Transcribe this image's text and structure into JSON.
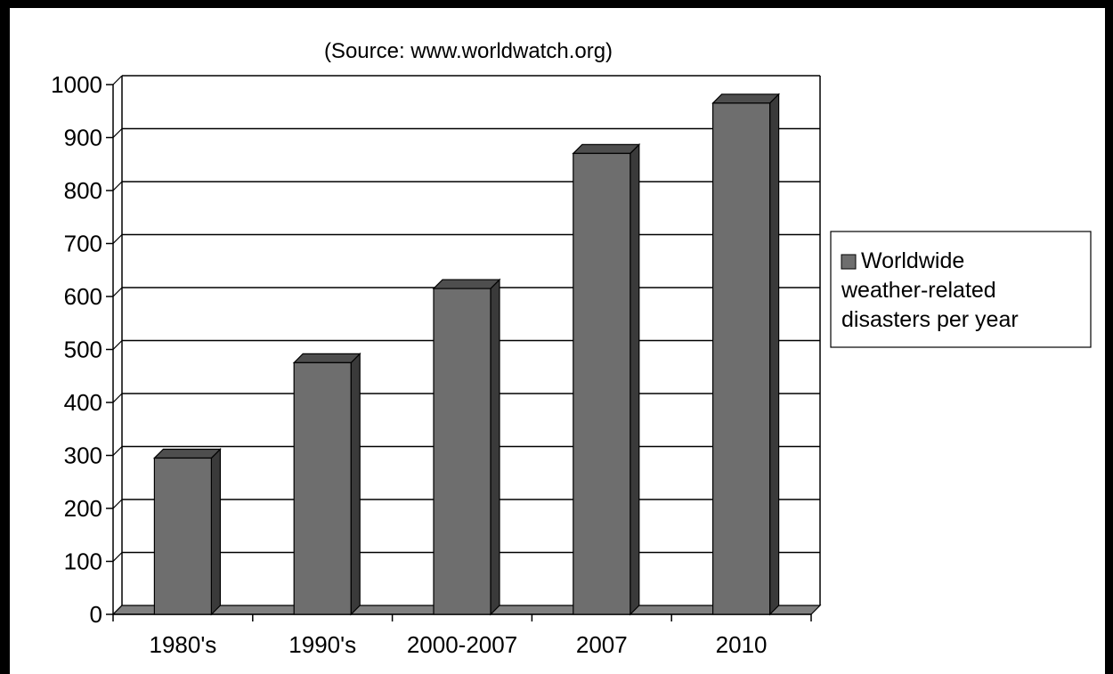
{
  "chart_data": {
    "type": "bar",
    "subtitle": "(Source: www.worldwatch.org)",
    "title": "",
    "xlabel": "",
    "ylabel": "",
    "categories": [
      "1980's",
      "1990's",
      "2000-2007",
      "2007",
      "2010"
    ],
    "series": [
      {
        "name": "Worldwide weather-related disasters per year",
        "name_lines": [
          "Worldwide",
          "weather-related",
          "disasters per year"
        ],
        "values": [
          295,
          475,
          615,
          870,
          965
        ]
      }
    ],
    "yticks": [
      0,
      100,
      200,
      300,
      400,
      500,
      600,
      700,
      800,
      900,
      1000
    ],
    "ylim": [
      0,
      1000
    ],
    "grid": true,
    "legend": "right",
    "style": "3d-column",
    "colors": {
      "bar_front": "#6e6e6e",
      "bar_side": "#3a3a3a",
      "bar_top": "#4e4e4e",
      "floor": "#808080",
      "background": "#ffffff"
    }
  }
}
